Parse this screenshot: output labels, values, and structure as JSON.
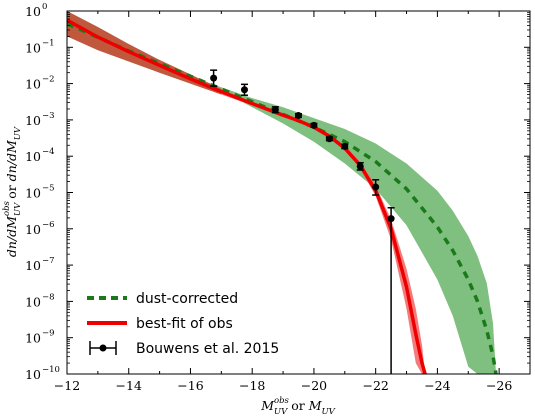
{
  "chart_data": {
    "type": "line",
    "xlabel": "M_UV^obs or M_UV",
    "xlabel_parts": {
      "m1": "M",
      "sup1": "obs",
      "sub1": "UV",
      "mid": " or ",
      "m2": "M",
      "sub2": "UV"
    },
    "ylabel": "dn/dM_UV^obs or dn/dM_UV",
    "ylabel_parts": {
      "p1": "dn/dM",
      "sup1": "obs",
      "sub1": "UV",
      "mid": " or ",
      "p2": "dn/dM",
      "sub2": "UV"
    },
    "xlim": [
      -12,
      -27
    ],
    "x_inverted": true,
    "ylim_log10": [
      -10,
      0
    ],
    "y_scale": "log",
    "x_ticks": [
      -12,
      -14,
      -16,
      -18,
      -20,
      -22,
      -24,
      -26
    ],
    "x_tick_labels": [
      "−12",
      "−14",
      "−16",
      "−18",
      "−20",
      "−22",
      "−24",
      "−26"
    ],
    "y_ticks_log10": [
      0,
      -1,
      -2,
      -3,
      -4,
      -5,
      -6,
      -7,
      -8,
      -9,
      -10
    ],
    "y_tick_base": "10",
    "y_tick_exponents": [
      "0",
      "−1",
      "−2",
      "−3",
      "−4",
      "−5",
      "−6",
      "−7",
      "−8",
      "−9",
      "−10"
    ],
    "grid": false,
    "legend_position": "bottom-left",
    "series": [
      {
        "name": "dust-corrected",
        "style": "dashed",
        "color": "#1a7a1a",
        "band_color": "#7fbf7f",
        "x": [
          -12,
          -14,
          -16,
          -17,
          -18,
          -19,
          -20,
          -21,
          -22,
          -23,
          -24,
          -24.5,
          -25,
          -25.3,
          -25.6,
          -25.8,
          -25.9
        ],
        "log10_y": [
          -0.35,
          -1.1,
          -1.8,
          -2.15,
          -2.5,
          -2.85,
          -3.2,
          -3.6,
          -4.15,
          -4.9,
          -5.95,
          -6.6,
          -7.4,
          -8.0,
          -8.8,
          -9.5,
          -10.0
        ],
        "band_upper_log10": [
          -0.35,
          -1.1,
          -1.8,
          -2.1,
          -2.4,
          -2.65,
          -2.95,
          -3.25,
          -3.65,
          -4.2,
          -4.95,
          -5.5,
          -6.2,
          -6.75,
          -7.5,
          -8.6,
          -10.0
        ],
        "band_lower_log10": [
          -0.35,
          -1.1,
          -1.8,
          -2.2,
          -2.65,
          -3.1,
          -3.6,
          -4.2,
          -4.9,
          -5.9,
          -7.4,
          -8.4,
          -9.8,
          -10.0,
          -10.0,
          -10.0,
          -10.0
        ]
      },
      {
        "name": "best-fit of obs",
        "style": "solid",
        "color": "#ee0000",
        "band_color": "#f47b7b",
        "x": [
          -12,
          -13,
          -14,
          -15,
          -16,
          -17,
          -18,
          -19,
          -19.5,
          -20,
          -20.5,
          -21,
          -21.5,
          -22,
          -22.5,
          -23,
          -23.3,
          -23.5,
          -23.6
        ],
        "log10_y": [
          -0.25,
          -0.72,
          -1.12,
          -1.5,
          -1.87,
          -2.22,
          -2.55,
          -2.87,
          -3.02,
          -3.2,
          -3.45,
          -3.78,
          -4.25,
          -4.95,
          -6.0,
          -7.6,
          -8.9,
          -9.7,
          -10.0
        ],
        "band_upper_log10": [
          -0.3,
          -0.65,
          -1.0,
          -1.35,
          -1.75,
          -2.15,
          -2.5,
          -2.85,
          -3.0,
          -3.18,
          -3.42,
          -3.72,
          -4.15,
          -4.8,
          -5.75,
          -7.1,
          -8.2,
          -9.2,
          -10.0
        ],
        "band_lower_log10": [
          -0.15,
          -0.85,
          -1.35,
          -1.7,
          -2.0,
          -2.3,
          -2.6,
          -2.9,
          -3.05,
          -3.22,
          -3.5,
          -3.85,
          -4.35,
          -5.1,
          -6.3,
          -8.2,
          -9.7,
          -10.0,
          -10.0
        ],
        "low_mag_band_color": "#c0583e",
        "low_mag_band_until_x": -17.2
      },
      {
        "name": "Bouwens et al. 2015",
        "style": "markers",
        "color": "#000000",
        "x": [
          -16.75,
          -17.75,
          -18.75,
          -19.5,
          -20.0,
          -20.5,
          -21.0,
          -21.5,
          -22.0,
          -22.5
        ],
        "log10_y": [
          -1.85,
          -2.17,
          -2.72,
          -2.88,
          -3.15,
          -3.52,
          -3.73,
          -4.28,
          -4.85,
          -5.72
        ],
        "err_up_log10": [
          0.22,
          0.15,
          0.08,
          0.05,
          0.05,
          0.05,
          0.06,
          0.1,
          0.2,
          0.3
        ],
        "err_down_log10": [
          0.22,
          0.15,
          0.08,
          0.05,
          0.05,
          0.05,
          0.06,
          0.1,
          0.22,
          4.28
        ]
      }
    ]
  }
}
